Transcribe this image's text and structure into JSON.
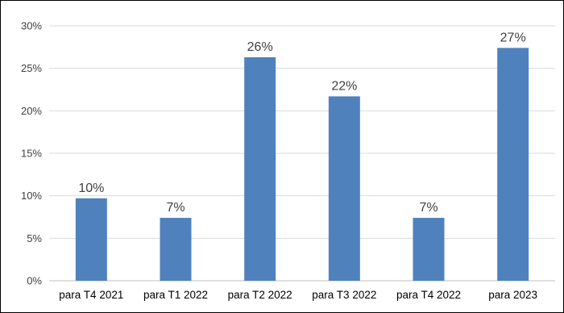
{
  "chart_data": {
    "type": "bar",
    "categories": [
      "para T4 2021",
      "para T1 2022",
      "para T2 2022",
      "para T3 2022",
      "para T4 2022",
      "para 2023"
    ],
    "values": [
      9.7,
      7.4,
      26.3,
      21.7,
      7.4,
      27.4
    ],
    "data_labels": [
      "10%",
      "7%",
      "26%",
      "22%",
      "7%",
      "27%"
    ],
    "ylim": [
      0,
      30
    ],
    "y_ticks": [
      0,
      5,
      10,
      15,
      20,
      25,
      30
    ],
    "y_tick_labels": [
      "0%",
      "5%",
      "10%",
      "15%",
      "20%",
      "25%",
      "30%"
    ],
    "grid": true,
    "legend": "none",
    "bar_color": "#4f81bd"
  }
}
